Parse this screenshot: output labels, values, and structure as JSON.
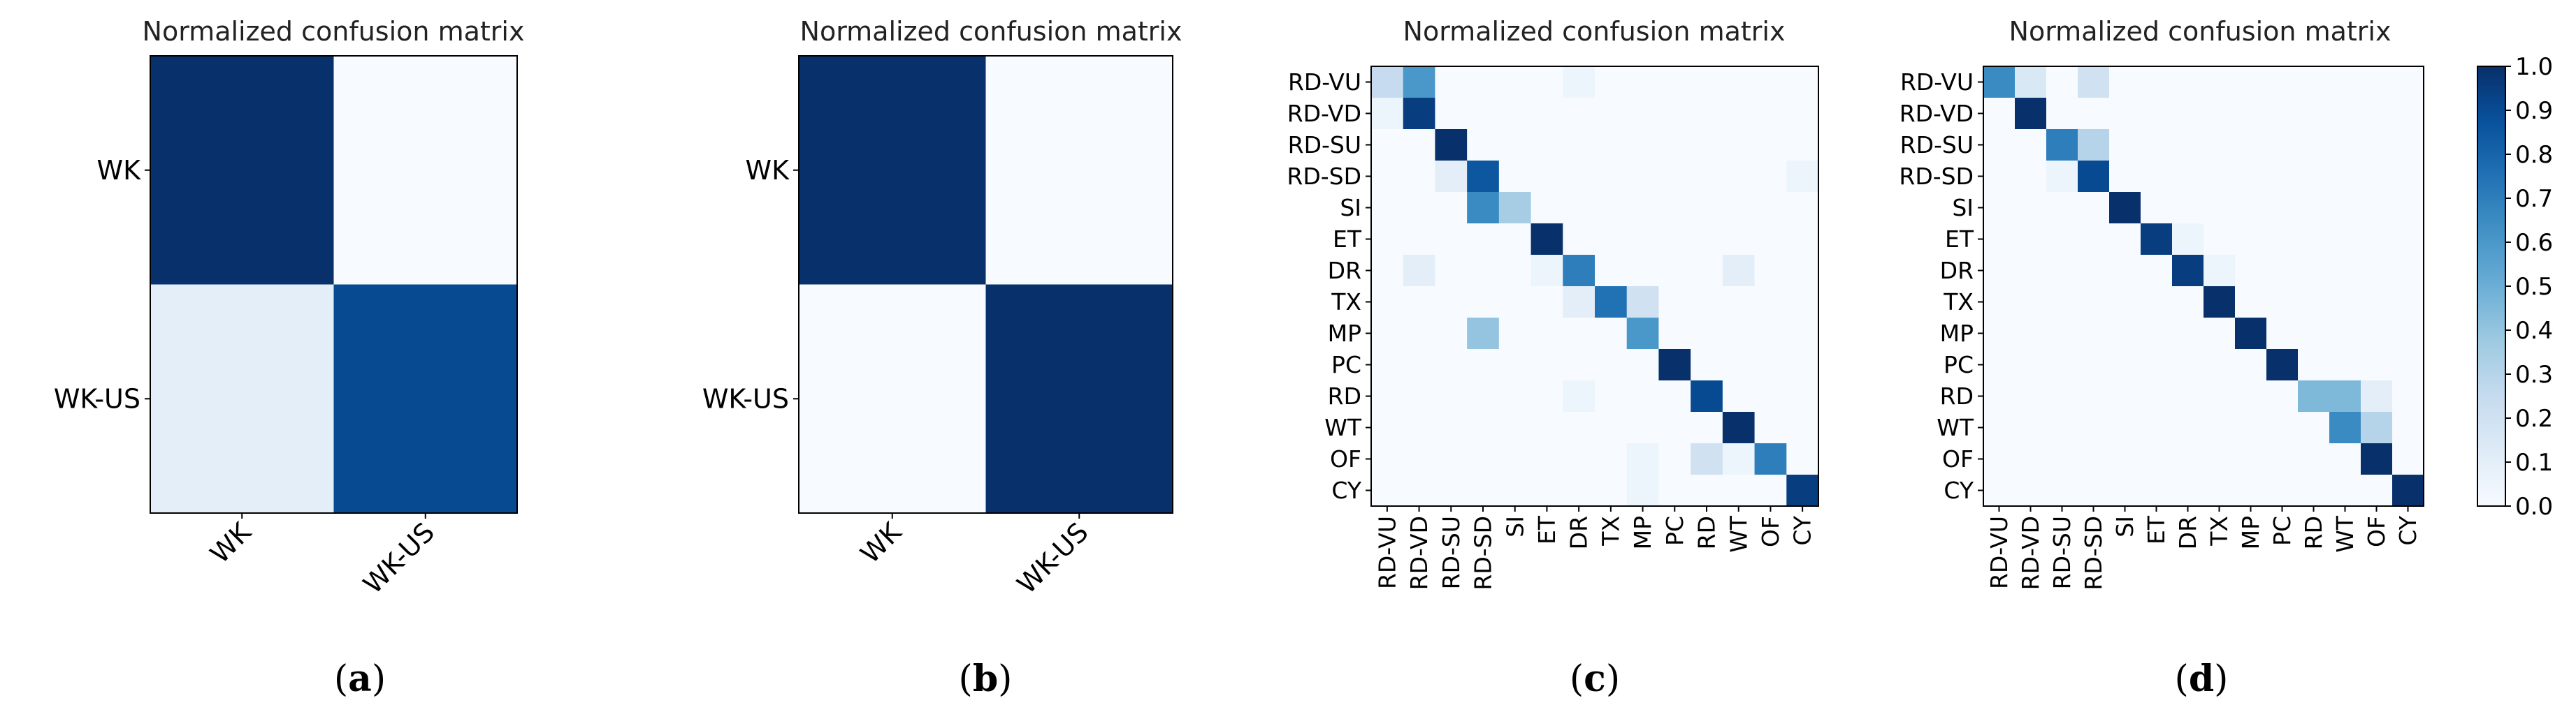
{
  "chart_data": [
    {
      "type": "heatmap",
      "panel": "a",
      "title": "Normalized confusion matrix",
      "caption_letter": "a",
      "row_labels": [
        "WK",
        "WK-US"
      ],
      "col_labels": [
        "WK",
        "WK-US"
      ],
      "values": [
        [
          1.0,
          0.0
        ],
        [
          0.1,
          0.9
        ]
      ]
    },
    {
      "type": "heatmap",
      "panel": "b",
      "title": "Normalized confusion matrix",
      "caption_letter": "b",
      "row_labels": [
        "WK",
        "WK-US"
      ],
      "col_labels": [
        "WK",
        "WK-US"
      ],
      "values": [
        [
          1.0,
          0.0
        ],
        [
          0.0,
          1.0
        ]
      ]
    },
    {
      "type": "heatmap",
      "panel": "c",
      "title": "Normalized confusion matrix",
      "caption_letter": "c",
      "row_labels": [
        "RD-VU",
        "RD-VD",
        "RD-SU",
        "RD-SD",
        "SI",
        "ET",
        "DR",
        "TX",
        "MP",
        "PC",
        "RD",
        "WT",
        "OF",
        "CY"
      ],
      "col_labels": [
        "RD-VU",
        "RD-VD",
        "RD-SU",
        "RD-SD",
        "SI",
        "ET",
        "DR",
        "TX",
        "MP",
        "PC",
        "RD",
        "WT",
        "OF",
        "CY"
      ],
      "values": [
        [
          0.25,
          0.6,
          0,
          0,
          0,
          0,
          0.05,
          0,
          0,
          0,
          0,
          0,
          0,
          0
        ],
        [
          0.05,
          0.95,
          0,
          0,
          0,
          0,
          0,
          0,
          0,
          0,
          0,
          0,
          0,
          0
        ],
        [
          0,
          0,
          1.0,
          0,
          0,
          0,
          0,
          0,
          0,
          0,
          0,
          0,
          0,
          0
        ],
        [
          0,
          0,
          0.1,
          0.85,
          0,
          0,
          0,
          0,
          0,
          0,
          0,
          0,
          0,
          0.05
        ],
        [
          0,
          0,
          0,
          0.65,
          0.35,
          0,
          0,
          0,
          0,
          0,
          0,
          0,
          0,
          0
        ],
        [
          0,
          0,
          0,
          0,
          0,
          1.0,
          0,
          0,
          0,
          0,
          0,
          0,
          0,
          0
        ],
        [
          0,
          0.1,
          0,
          0,
          0,
          0.05,
          0.7,
          0,
          0,
          0,
          0,
          0.1,
          0,
          0
        ],
        [
          0,
          0,
          0,
          0,
          0,
          0,
          0.1,
          0.75,
          0.2,
          0,
          0,
          0,
          0,
          0
        ],
        [
          0,
          0,
          0,
          0.4,
          0,
          0,
          0,
          0,
          0.6,
          0,
          0,
          0,
          0,
          0
        ],
        [
          0,
          0,
          0,
          0,
          0,
          0,
          0,
          0,
          0,
          1.0,
          0,
          0,
          0,
          0
        ],
        [
          0,
          0,
          0,
          0,
          0,
          0,
          0.05,
          0,
          0,
          0,
          0.9,
          0,
          0,
          0
        ],
        [
          0,
          0,
          0,
          0,
          0,
          0,
          0,
          0,
          0,
          0,
          0,
          1.0,
          0,
          0
        ],
        [
          0,
          0,
          0,
          0,
          0,
          0,
          0,
          0,
          0.05,
          0,
          0.2,
          0.05,
          0.7,
          0
        ],
        [
          0,
          0,
          0,
          0,
          0,
          0,
          0,
          0,
          0.05,
          0,
          0,
          0,
          0,
          0.95
        ]
      ]
    },
    {
      "type": "heatmap",
      "panel": "d",
      "title": "Normalized confusion matrix",
      "caption_letter": "d",
      "row_labels": [
        "RD-VU",
        "RD-VD",
        "RD-SU",
        "RD-SD",
        "SI",
        "ET",
        "DR",
        "TX",
        "MP",
        "PC",
        "RD",
        "WT",
        "OF",
        "CY"
      ],
      "col_labels": [
        "RD-VU",
        "RD-VD",
        "RD-SU",
        "RD-SD",
        "SI",
        "ET",
        "DR",
        "TX",
        "MP",
        "PC",
        "RD",
        "WT",
        "OF",
        "CY"
      ],
      "values": [
        [
          0.65,
          0.15,
          0,
          0.2,
          0,
          0,
          0,
          0,
          0,
          0,
          0,
          0,
          0,
          0
        ],
        [
          0,
          1.0,
          0,
          0,
          0,
          0,
          0,
          0,
          0,
          0,
          0,
          0,
          0,
          0
        ],
        [
          0,
          0,
          0.7,
          0.3,
          0,
          0,
          0,
          0,
          0,
          0,
          0,
          0,
          0,
          0
        ],
        [
          0,
          0,
          0.05,
          0.9,
          0,
          0,
          0,
          0,
          0,
          0,
          0,
          0,
          0,
          0
        ],
        [
          0,
          0,
          0,
          0,
          1.0,
          0,
          0,
          0,
          0,
          0,
          0,
          0,
          0,
          0
        ],
        [
          0,
          0,
          0,
          0,
          0,
          0.95,
          0.05,
          0,
          0,
          0,
          0,
          0,
          0,
          0
        ],
        [
          0,
          0,
          0,
          0,
          0,
          0,
          0.95,
          0.05,
          0,
          0,
          0,
          0,
          0,
          0
        ],
        [
          0,
          0,
          0,
          0,
          0,
          0,
          0,
          1.0,
          0,
          0,
          0,
          0,
          0,
          0
        ],
        [
          0,
          0,
          0,
          0,
          0,
          0,
          0,
          0,
          1.0,
          0,
          0,
          0,
          0,
          0
        ],
        [
          0,
          0,
          0,
          0,
          0,
          0,
          0,
          0,
          0,
          1.0,
          0,
          0,
          0,
          0
        ],
        [
          0,
          0,
          0,
          0,
          0,
          0,
          0,
          0,
          0,
          0,
          0.45,
          0.45,
          0.1,
          0
        ],
        [
          0,
          0,
          0,
          0,
          0,
          0,
          0,
          0,
          0,
          0,
          0,
          0.65,
          0.3,
          0
        ],
        [
          0,
          0,
          0,
          0,
          0,
          0,
          0,
          0,
          0,
          0,
          0,
          0,
          1.0,
          0
        ],
        [
          0,
          0,
          0,
          0,
          0,
          0,
          0,
          0,
          0,
          0,
          0,
          0,
          0,
          1.0
        ]
      ]
    }
  ],
  "colorbar": {
    "ticks": [
      "1.0",
      "0.9",
      "0.8",
      "0.7",
      "0.6",
      "0.5",
      "0.4",
      "0.3",
      "0.2",
      "0.1",
      "0.0"
    ],
    "range": [
      0,
      1
    ]
  },
  "colormap": {
    "low": "#f7fbff",
    "stops": [
      "#f7fbff",
      "#deebf7",
      "#c6dbef",
      "#9ecae1",
      "#6baed6",
      "#4292c6",
      "#2171b5",
      "#08519c",
      "#08306b"
    ]
  }
}
